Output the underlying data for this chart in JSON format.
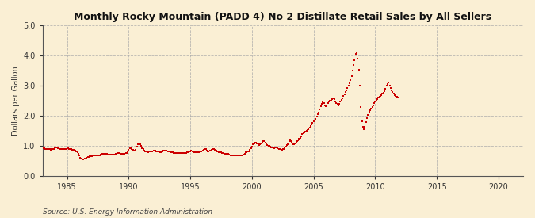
{
  "title": "Monthly Rocky Mountain (PADD 4) No 2 Distillate Retail Sales by All Sellers",
  "ylabel": "Dollars per Gallon",
  "source": "Source: U.S. Energy Information Administration",
  "background_color": "#faefd4",
  "marker_color": "#cc0000",
  "xlim_start": 1983,
  "xlim_end": 2022,
  "ylim": [
    0.0,
    5.0
  ],
  "yticks": [
    0.0,
    1.0,
    2.0,
    3.0,
    4.0,
    5.0
  ],
  "xticks": [
    1985,
    1990,
    1995,
    2000,
    2005,
    2010,
    2015,
    2020
  ],
  "data": [
    [
      1983.08,
      0.92
    ],
    [
      1983.17,
      0.91
    ],
    [
      1983.25,
      0.9
    ],
    [
      1983.33,
      0.89
    ],
    [
      1983.42,
      0.89
    ],
    [
      1983.5,
      0.88
    ],
    [
      1983.58,
      0.88
    ],
    [
      1983.67,
      0.87
    ],
    [
      1983.75,
      0.88
    ],
    [
      1983.83,
      0.89
    ],
    [
      1983.92,
      0.9
    ],
    [
      1984.0,
      0.92
    ],
    [
      1984.08,
      0.93
    ],
    [
      1984.17,
      0.93
    ],
    [
      1984.25,
      0.92
    ],
    [
      1984.33,
      0.91
    ],
    [
      1984.42,
      0.9
    ],
    [
      1984.5,
      0.89
    ],
    [
      1984.58,
      0.89
    ],
    [
      1984.67,
      0.88
    ],
    [
      1984.75,
      0.88
    ],
    [
      1984.83,
      0.89
    ],
    [
      1984.92,
      0.9
    ],
    [
      1985.0,
      0.91
    ],
    [
      1985.08,
      0.91
    ],
    [
      1985.17,
      0.9
    ],
    [
      1985.25,
      0.89
    ],
    [
      1985.33,
      0.88
    ],
    [
      1985.42,
      0.87
    ],
    [
      1985.5,
      0.86
    ],
    [
      1985.58,
      0.85
    ],
    [
      1985.67,
      0.83
    ],
    [
      1985.75,
      0.8
    ],
    [
      1985.83,
      0.77
    ],
    [
      1985.92,
      0.74
    ],
    [
      1986.0,
      0.68
    ],
    [
      1986.08,
      0.6
    ],
    [
      1986.17,
      0.56
    ],
    [
      1986.25,
      0.55
    ],
    [
      1986.33,
      0.55
    ],
    [
      1986.42,
      0.56
    ],
    [
      1986.5,
      0.58
    ],
    [
      1986.58,
      0.6
    ],
    [
      1986.67,
      0.62
    ],
    [
      1986.75,
      0.63
    ],
    [
      1986.83,
      0.64
    ],
    [
      1986.92,
      0.65
    ],
    [
      1987.0,
      0.66
    ],
    [
      1987.08,
      0.67
    ],
    [
      1987.17,
      0.68
    ],
    [
      1987.25,
      0.68
    ],
    [
      1987.33,
      0.67
    ],
    [
      1987.42,
      0.67
    ],
    [
      1987.5,
      0.67
    ],
    [
      1987.58,
      0.67
    ],
    [
      1987.67,
      0.68
    ],
    [
      1987.75,
      0.7
    ],
    [
      1987.83,
      0.72
    ],
    [
      1987.92,
      0.74
    ],
    [
      1988.0,
      0.74
    ],
    [
      1988.08,
      0.74
    ],
    [
      1988.17,
      0.73
    ],
    [
      1988.25,
      0.72
    ],
    [
      1988.33,
      0.71
    ],
    [
      1988.42,
      0.7
    ],
    [
      1988.5,
      0.7
    ],
    [
      1988.58,
      0.7
    ],
    [
      1988.67,
      0.7
    ],
    [
      1988.75,
      0.7
    ],
    [
      1988.83,
      0.71
    ],
    [
      1988.92,
      0.72
    ],
    [
      1989.0,
      0.74
    ],
    [
      1989.08,
      0.76
    ],
    [
      1989.17,
      0.76
    ],
    [
      1989.25,
      0.75
    ],
    [
      1989.33,
      0.74
    ],
    [
      1989.42,
      0.74
    ],
    [
      1989.5,
      0.74
    ],
    [
      1989.58,
      0.74
    ],
    [
      1989.67,
      0.74
    ],
    [
      1989.75,
      0.75
    ],
    [
      1989.83,
      0.76
    ],
    [
      1989.92,
      0.8
    ],
    [
      1990.0,
      0.87
    ],
    [
      1990.08,
      0.92
    ],
    [
      1990.17,
      0.94
    ],
    [
      1990.25,
      0.9
    ],
    [
      1990.33,
      0.86
    ],
    [
      1990.42,
      0.84
    ],
    [
      1990.5,
      0.84
    ],
    [
      1990.58,
      0.87
    ],
    [
      1990.67,
      0.96
    ],
    [
      1990.75,
      1.05
    ],
    [
      1990.83,
      1.07
    ],
    [
      1990.92,
      1.05
    ],
    [
      1991.0,
      0.99
    ],
    [
      1991.08,
      0.92
    ],
    [
      1991.17,
      0.88
    ],
    [
      1991.25,
      0.84
    ],
    [
      1991.33,
      0.82
    ],
    [
      1991.42,
      0.8
    ],
    [
      1991.5,
      0.79
    ],
    [
      1991.58,
      0.79
    ],
    [
      1991.67,
      0.8
    ],
    [
      1991.75,
      0.81
    ],
    [
      1991.83,
      0.82
    ],
    [
      1991.92,
      0.82
    ],
    [
      1992.0,
      0.83
    ],
    [
      1992.08,
      0.83
    ],
    [
      1992.17,
      0.83
    ],
    [
      1992.25,
      0.82
    ],
    [
      1992.33,
      0.81
    ],
    [
      1992.42,
      0.8
    ],
    [
      1992.5,
      0.79
    ],
    [
      1992.58,
      0.79
    ],
    [
      1992.67,
      0.8
    ],
    [
      1992.75,
      0.82
    ],
    [
      1992.83,
      0.83
    ],
    [
      1992.92,
      0.84
    ],
    [
      1993.0,
      0.84
    ],
    [
      1993.08,
      0.83
    ],
    [
      1993.17,
      0.82
    ],
    [
      1993.25,
      0.81
    ],
    [
      1993.33,
      0.8
    ],
    [
      1993.42,
      0.79
    ],
    [
      1993.5,
      0.78
    ],
    [
      1993.58,
      0.77
    ],
    [
      1993.67,
      0.76
    ],
    [
      1993.75,
      0.76
    ],
    [
      1993.83,
      0.76
    ],
    [
      1993.92,
      0.76
    ],
    [
      1994.0,
      0.76
    ],
    [
      1994.08,
      0.76
    ],
    [
      1994.17,
      0.76
    ],
    [
      1994.25,
      0.76
    ],
    [
      1994.33,
      0.76
    ],
    [
      1994.42,
      0.76
    ],
    [
      1994.5,
      0.76
    ],
    [
      1994.58,
      0.76
    ],
    [
      1994.67,
      0.76
    ],
    [
      1994.75,
      0.77
    ],
    [
      1994.83,
      0.78
    ],
    [
      1994.92,
      0.8
    ],
    [
      1995.0,
      0.82
    ],
    [
      1995.08,
      0.83
    ],
    [
      1995.17,
      0.82
    ],
    [
      1995.25,
      0.8
    ],
    [
      1995.33,
      0.79
    ],
    [
      1995.42,
      0.79
    ],
    [
      1995.5,
      0.79
    ],
    [
      1995.58,
      0.79
    ],
    [
      1995.67,
      0.79
    ],
    [
      1995.75,
      0.8
    ],
    [
      1995.83,
      0.81
    ],
    [
      1995.92,
      0.82
    ],
    [
      1996.0,
      0.84
    ],
    [
      1996.08,
      0.87
    ],
    [
      1996.17,
      0.9
    ],
    [
      1996.25,
      0.88
    ],
    [
      1996.33,
      0.84
    ],
    [
      1996.42,
      0.82
    ],
    [
      1996.5,
      0.82
    ],
    [
      1996.58,
      0.83
    ],
    [
      1996.67,
      0.84
    ],
    [
      1996.75,
      0.86
    ],
    [
      1996.83,
      0.88
    ],
    [
      1996.92,
      0.88
    ],
    [
      1997.0,
      0.87
    ],
    [
      1997.08,
      0.84
    ],
    [
      1997.17,
      0.82
    ],
    [
      1997.25,
      0.8
    ],
    [
      1997.33,
      0.79
    ],
    [
      1997.42,
      0.78
    ],
    [
      1997.5,
      0.77
    ],
    [
      1997.58,
      0.76
    ],
    [
      1997.67,
      0.75
    ],
    [
      1997.75,
      0.74
    ],
    [
      1997.83,
      0.74
    ],
    [
      1997.92,
      0.74
    ],
    [
      1998.0,
      0.74
    ],
    [
      1998.08,
      0.72
    ],
    [
      1998.17,
      0.7
    ],
    [
      1998.25,
      0.68
    ],
    [
      1998.33,
      0.67
    ],
    [
      1998.42,
      0.67
    ],
    [
      1998.5,
      0.67
    ],
    [
      1998.58,
      0.68
    ],
    [
      1998.67,
      0.68
    ],
    [
      1998.75,
      0.68
    ],
    [
      1998.83,
      0.68
    ],
    [
      1998.92,
      0.68
    ],
    [
      1999.0,
      0.68
    ],
    [
      1999.08,
      0.67
    ],
    [
      1999.17,
      0.67
    ],
    [
      1999.25,
      0.67
    ],
    [
      1999.33,
      0.7
    ],
    [
      1999.42,
      0.74
    ],
    [
      1999.5,
      0.77
    ],
    [
      1999.58,
      0.79
    ],
    [
      1999.67,
      0.8
    ],
    [
      1999.75,
      0.82
    ],
    [
      1999.83,
      0.86
    ],
    [
      1999.92,
      0.91
    ],
    [
      2000.0,
      0.97
    ],
    [
      2000.08,
      1.05
    ],
    [
      2000.17,
      1.08
    ],
    [
      2000.25,
      1.1
    ],
    [
      2000.33,
      1.09
    ],
    [
      2000.42,
      1.06
    ],
    [
      2000.5,
      1.04
    ],
    [
      2000.58,
      1.03
    ],
    [
      2000.67,
      1.04
    ],
    [
      2000.75,
      1.07
    ],
    [
      2000.83,
      1.13
    ],
    [
      2000.92,
      1.17
    ],
    [
      2001.0,
      1.15
    ],
    [
      2001.08,
      1.11
    ],
    [
      2001.17,
      1.05
    ],
    [
      2001.25,
      1.02
    ],
    [
      2001.33,
      1.0
    ],
    [
      2001.42,
      0.99
    ],
    [
      2001.5,
      0.97
    ],
    [
      2001.58,
      0.95
    ],
    [
      2001.67,
      0.93
    ],
    [
      2001.75,
      0.92
    ],
    [
      2001.83,
      0.92
    ],
    [
      2001.92,
      0.93
    ],
    [
      2002.0,
      0.93
    ],
    [
      2002.08,
      0.92
    ],
    [
      2002.17,
      0.9
    ],
    [
      2002.25,
      0.89
    ],
    [
      2002.33,
      0.88
    ],
    [
      2002.42,
      0.87
    ],
    [
      2002.5,
      0.88
    ],
    [
      2002.58,
      0.9
    ],
    [
      2002.67,
      0.94
    ],
    [
      2002.75,
      0.98
    ],
    [
      2002.83,
      1.02
    ],
    [
      2002.92,
      1.05
    ],
    [
      2003.0,
      1.15
    ],
    [
      2003.08,
      1.2
    ],
    [
      2003.17,
      1.15
    ],
    [
      2003.25,
      1.1
    ],
    [
      2003.33,
      1.05
    ],
    [
      2003.42,
      1.05
    ],
    [
      2003.5,
      1.07
    ],
    [
      2003.58,
      1.1
    ],
    [
      2003.67,
      1.14
    ],
    [
      2003.75,
      1.17
    ],
    [
      2003.83,
      1.22
    ],
    [
      2003.92,
      1.27
    ],
    [
      2004.0,
      1.32
    ],
    [
      2004.08,
      1.38
    ],
    [
      2004.17,
      1.42
    ],
    [
      2004.25,
      1.45
    ],
    [
      2004.33,
      1.47
    ],
    [
      2004.42,
      1.49
    ],
    [
      2004.5,
      1.53
    ],
    [
      2004.58,
      1.56
    ],
    [
      2004.67,
      1.6
    ],
    [
      2004.75,
      1.65
    ],
    [
      2004.83,
      1.71
    ],
    [
      2004.92,
      1.75
    ],
    [
      2005.0,
      1.8
    ],
    [
      2005.08,
      1.85
    ],
    [
      2005.17,
      1.9
    ],
    [
      2005.25,
      1.97
    ],
    [
      2005.33,
      2.05
    ],
    [
      2005.42,
      2.1
    ],
    [
      2005.5,
      2.2
    ],
    [
      2005.58,
      2.3
    ],
    [
      2005.67,
      2.38
    ],
    [
      2005.75,
      2.45
    ],
    [
      2005.83,
      2.42
    ],
    [
      2005.92,
      2.35
    ],
    [
      2006.0,
      2.3
    ],
    [
      2006.08,
      2.35
    ],
    [
      2006.17,
      2.42
    ],
    [
      2006.25,
      2.48
    ],
    [
      2006.33,
      2.5
    ],
    [
      2006.42,
      2.52
    ],
    [
      2006.5,
      2.55
    ],
    [
      2006.58,
      2.58
    ],
    [
      2006.67,
      2.55
    ],
    [
      2006.75,
      2.48
    ],
    [
      2006.83,
      2.42
    ],
    [
      2006.92,
      2.38
    ],
    [
      2007.0,
      2.35
    ],
    [
      2007.08,
      2.4
    ],
    [
      2007.17,
      2.46
    ],
    [
      2007.25,
      2.52
    ],
    [
      2007.33,
      2.58
    ],
    [
      2007.42,
      2.65
    ],
    [
      2007.5,
      2.7
    ],
    [
      2007.58,
      2.78
    ],
    [
      2007.67,
      2.85
    ],
    [
      2007.75,
      2.92
    ],
    [
      2007.83,
      3.0
    ],
    [
      2007.92,
      3.08
    ],
    [
      2008.0,
      3.18
    ],
    [
      2008.08,
      3.32
    ],
    [
      2008.17,
      3.5
    ],
    [
      2008.25,
      3.68
    ],
    [
      2008.33,
      3.85
    ],
    [
      2008.42,
      4.05
    ],
    [
      2008.5,
      4.1
    ],
    [
      2008.58,
      3.9
    ],
    [
      2008.67,
      3.52
    ],
    [
      2008.75,
      3.0
    ],
    [
      2008.83,
      2.28
    ],
    [
      2008.92,
      1.82
    ],
    [
      2009.0,
      1.63
    ],
    [
      2009.08,
      1.55
    ],
    [
      2009.17,
      1.62
    ],
    [
      2009.25,
      1.78
    ],
    [
      2009.33,
      1.92
    ],
    [
      2009.42,
      2.02
    ],
    [
      2009.5,
      2.12
    ],
    [
      2009.58,
      2.18
    ],
    [
      2009.67,
      2.22
    ],
    [
      2009.75,
      2.28
    ],
    [
      2009.83,
      2.35
    ],
    [
      2009.92,
      2.42
    ],
    [
      2010.0,
      2.48
    ],
    [
      2010.08,
      2.52
    ],
    [
      2010.17,
      2.55
    ],
    [
      2010.25,
      2.6
    ],
    [
      2010.33,
      2.62
    ],
    [
      2010.42,
      2.65
    ],
    [
      2010.5,
      2.68
    ],
    [
      2010.58,
      2.72
    ],
    [
      2010.67,
      2.75
    ],
    [
      2010.75,
      2.8
    ],
    [
      2010.83,
      2.88
    ],
    [
      2010.92,
      3.0
    ],
    [
      2011.0,
      3.05
    ],
    [
      2011.08,
      3.1
    ],
    [
      2011.17,
      3.0
    ],
    [
      2011.25,
      2.92
    ],
    [
      2011.33,
      2.85
    ],
    [
      2011.42,
      2.78
    ],
    [
      2011.5,
      2.72
    ],
    [
      2011.58,
      2.68
    ],
    [
      2011.67,
      2.65
    ],
    [
      2011.75,
      2.62
    ],
    [
      2011.83,
      2.6
    ]
  ]
}
